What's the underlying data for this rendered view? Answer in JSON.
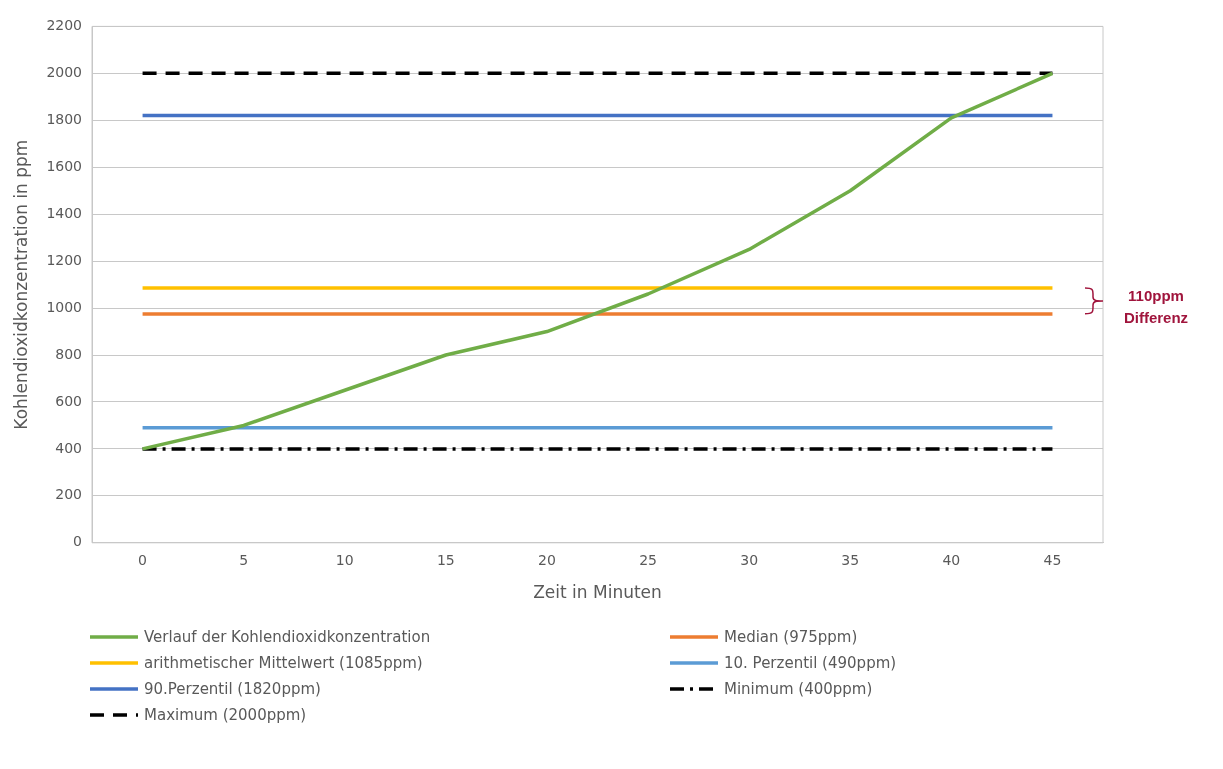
{
  "chart_data": {
    "type": "line",
    "xlabel": "Zeit in Minuten",
    "ylabel": "Kohlendioxidkonzentration in ppm",
    "categories": [
      "0",
      "5",
      "10",
      "15",
      "20",
      "25",
      "30",
      "35",
      "40",
      "45"
    ],
    "series": [
      {
        "name": "Verlauf der Kohlendioxidkonzentration",
        "color": "#70ad47",
        "values": [
          400,
          500,
          650,
          800,
          900,
          1060,
          1250,
          1500,
          1810,
          2000
        ]
      },
      {
        "name": "Median (975ppm)",
        "color": "#ed7d31",
        "values": [
          975,
          975,
          975,
          975,
          975,
          975,
          975,
          975,
          975,
          975
        ]
      },
      {
        "name": "arithmetischer Mittelwert (1085ppm)",
        "color": "#ffc000",
        "values": [
          1085,
          1085,
          1085,
          1085,
          1085,
          1085,
          1085,
          1085,
          1085,
          1085
        ]
      },
      {
        "name": "10. Perzentil (490ppm)",
        "color": "#5b9bd5",
        "values": [
          490,
          490,
          490,
          490,
          490,
          490,
          490,
          490,
          490,
          490
        ]
      },
      {
        "name": "90.Perzentil (1820ppm)",
        "color": "#4472c4",
        "values": [
          1820,
          1820,
          1820,
          1820,
          1820,
          1820,
          1820,
          1820,
          1820,
          1820
        ]
      },
      {
        "name": "Minimum (400ppm)",
        "color": "#000000",
        "line_style": "dashdot",
        "values": [
          400,
          400,
          400,
          400,
          400,
          400,
          400,
          400,
          400,
          400
        ]
      },
      {
        "name": "Maximum (2000ppm)",
        "color": "#000000",
        "line_style": "dashed",
        "values": [
          2000,
          2000,
          2000,
          2000,
          2000,
          2000,
          2000,
          2000,
          2000,
          2000
        ]
      }
    ],
    "ylim": [
      0,
      2200
    ],
    "yticks": [
      0,
      200,
      400,
      600,
      800,
      1000,
      1200,
      1400,
      1600,
      1800,
      2000,
      2200
    ],
    "grid": "y",
    "legend": "bottom",
    "marker": "none",
    "annotations": [
      "110ppm Differenz"
    ]
  }
}
